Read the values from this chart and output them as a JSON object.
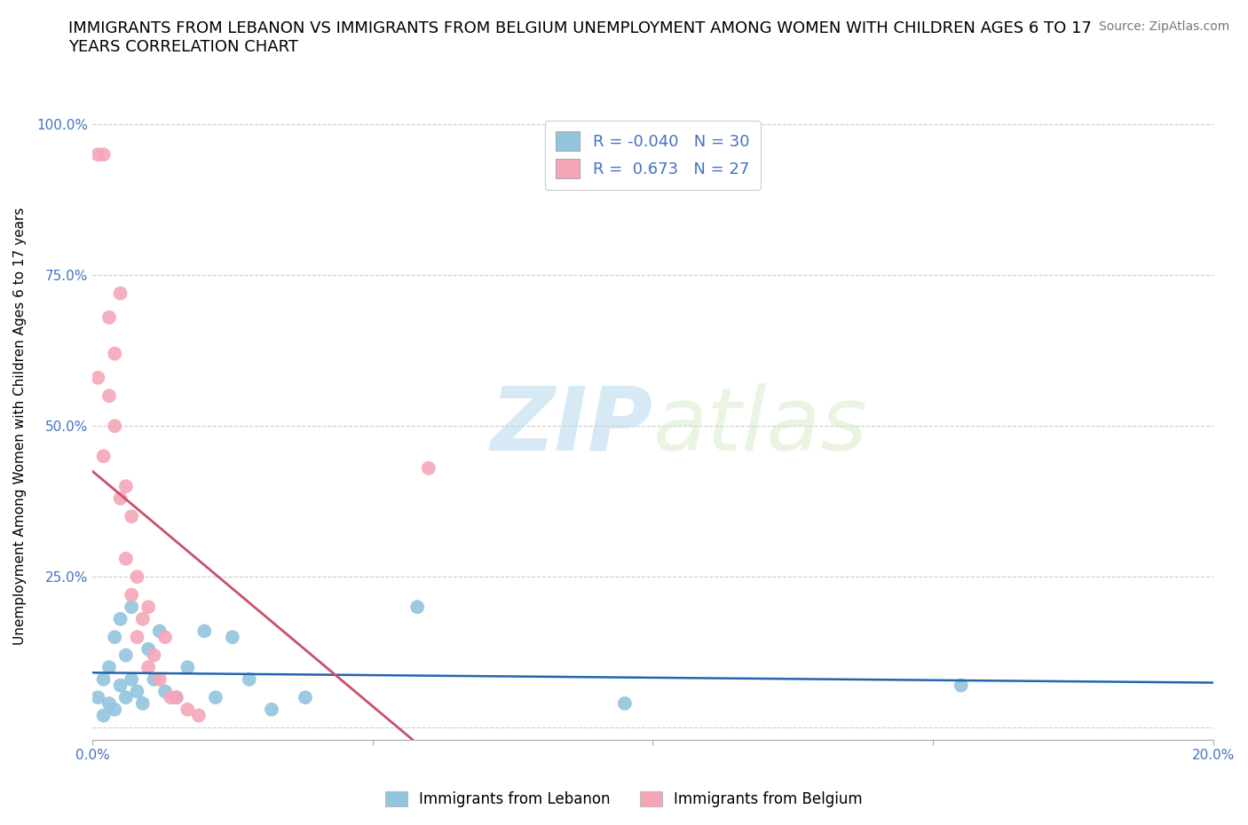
{
  "title": "IMMIGRANTS FROM LEBANON VS IMMIGRANTS FROM BELGIUM UNEMPLOYMENT AMONG WOMEN WITH CHILDREN AGES 6 TO 17\nYEARS CORRELATION CHART",
  "source_text": "Source: ZipAtlas.com",
  "ylabel": "Unemployment Among Women with Children Ages 6 to 17 years",
  "xlim": [
    0.0,
    0.2
  ],
  "ylim": [
    -0.02,
    1.02
  ],
  "xticks": [
    0.0,
    0.05,
    0.1,
    0.15,
    0.2
  ],
  "xticklabels": [
    "0.0%",
    "",
    "",
    "",
    "20.0%"
  ],
  "yticks": [
    0.0,
    0.25,
    0.5,
    0.75,
    1.0
  ],
  "yticklabels": [
    "",
    "25.0%",
    "50.0%",
    "75.0%",
    "100.0%"
  ],
  "blue_color": "#92C5DE",
  "pink_color": "#F4A6B8",
  "blue_line_color": "#2166AC",
  "pink_line_color": "#C8506A",
  "r_blue": -0.04,
  "n_blue": 30,
  "r_pink": 0.673,
  "n_pink": 27,
  "legend_label_blue": "Immigrants from Lebanon",
  "legend_label_pink": "Immigrants from Belgium",
  "watermark_zip": "ZIP",
  "watermark_atlas": "atlas",
  "title_fontsize": 13,
  "axis_label_fontsize": 11,
  "tick_fontsize": 11,
  "source_fontsize": 10,
  "blue_scatter_x": [
    0.001,
    0.002,
    0.002,
    0.003,
    0.003,
    0.004,
    0.004,
    0.005,
    0.005,
    0.006,
    0.006,
    0.007,
    0.007,
    0.008,
    0.009,
    0.01,
    0.011,
    0.012,
    0.013,
    0.015,
    0.017,
    0.02,
    0.022,
    0.025,
    0.028,
    0.032,
    0.038,
    0.058,
    0.095,
    0.155
  ],
  "blue_scatter_y": [
    0.05,
    0.02,
    0.08,
    0.1,
    0.04,
    0.15,
    0.03,
    0.18,
    0.07,
    0.12,
    0.05,
    0.08,
    0.2,
    0.06,
    0.04,
    0.13,
    0.08,
    0.16,
    0.06,
    0.05,
    0.1,
    0.16,
    0.05,
    0.15,
    0.08,
    0.03,
    0.05,
    0.2,
    0.04,
    0.07
  ],
  "pink_scatter_x": [
    0.001,
    0.001,
    0.002,
    0.002,
    0.003,
    0.003,
    0.004,
    0.004,
    0.005,
    0.005,
    0.006,
    0.006,
    0.007,
    0.007,
    0.008,
    0.008,
    0.009,
    0.01,
    0.01,
    0.011,
    0.012,
    0.013,
    0.014,
    0.015,
    0.017,
    0.019,
    0.06
  ],
  "pink_scatter_y": [
    0.58,
    0.95,
    0.95,
    0.45,
    0.68,
    0.55,
    0.62,
    0.5,
    0.72,
    0.38,
    0.4,
    0.28,
    0.35,
    0.22,
    0.25,
    0.15,
    0.18,
    0.2,
    0.1,
    0.12,
    0.08,
    0.15,
    0.05,
    0.05,
    0.03,
    0.02,
    0.43
  ]
}
